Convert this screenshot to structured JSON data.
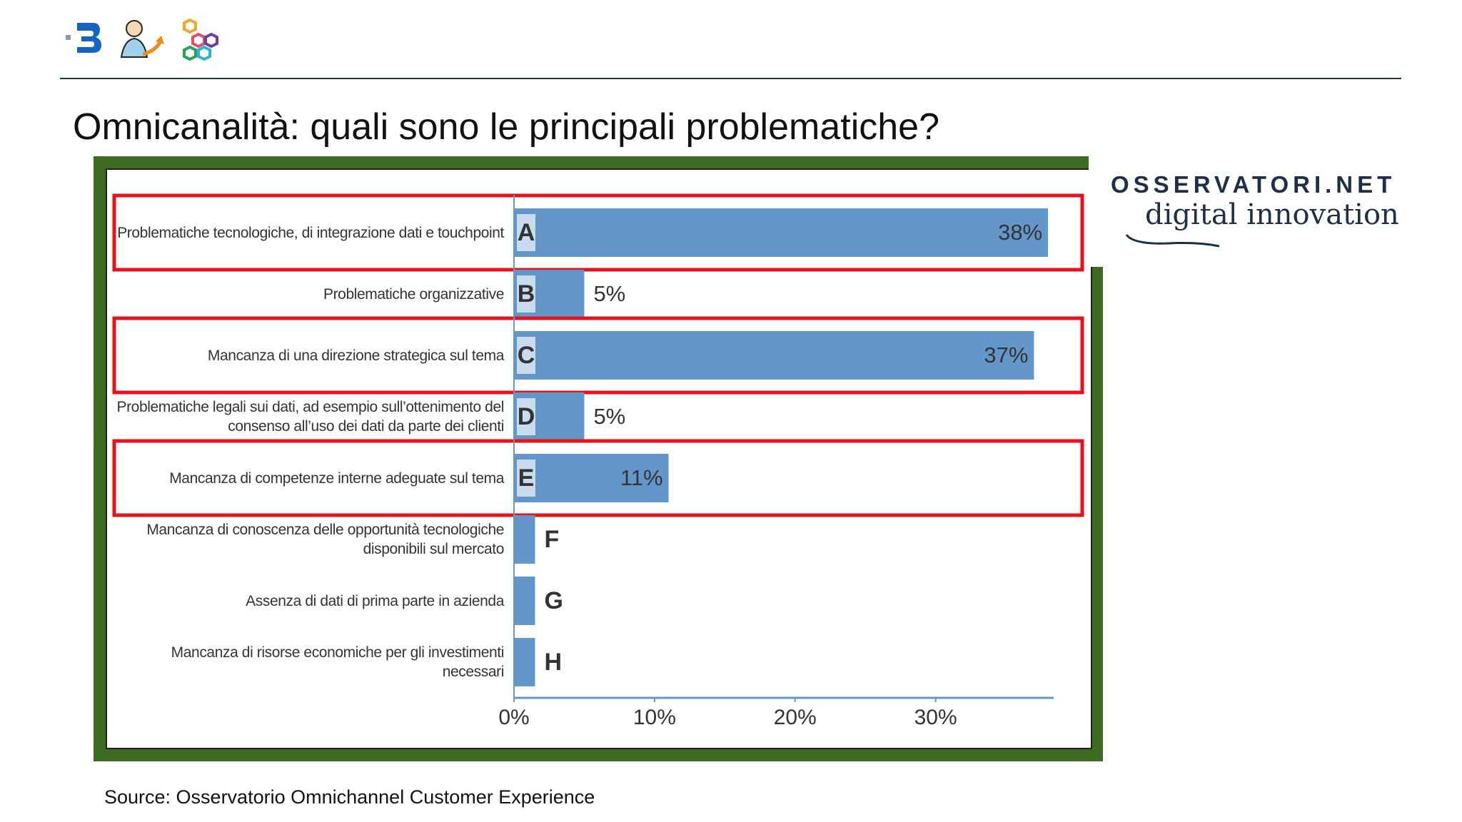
{
  "header": {
    "title": "Omnicanalità: quali sono le principali problematiche?"
  },
  "logo": {
    "name": "OSSERVATORI.NET",
    "tagline": "digital innovation"
  },
  "source": "Source: Osservatorio Omnichannel Customer Experience",
  "chart_data": {
    "type": "bar",
    "orientation": "horizontal",
    "categories": [
      "Problematiche tecnologiche, di integrazione dati e touchpoint",
      "Problematiche organizzative",
      "Mancanza di una direzione strategica sul tema",
      "Problematiche legali sui dati, ad esempio sull’ottenimento del consenso all’uso dei dati da parte dei clienti",
      "Mancanza di competenze interne adeguate sul tema",
      "Mancanza di conoscenza delle opportunità tecnologiche disponibili sul mercato",
      "Assenza di dati di prima parte in azienda",
      "Mancanza di risorse economiche per gli investimenti necessari"
    ],
    "letters": [
      "A",
      "B",
      "C",
      "D",
      "E",
      "F",
      "G",
      "H"
    ],
    "values": [
      38,
      5,
      37,
      5,
      11,
      1.5,
      1.5,
      1.5
    ],
    "value_labels": [
      "38%",
      "5%",
      "37%",
      "5%",
      "11%",
      null,
      null,
      null
    ],
    "color": "#6497c9",
    "highlighted": [
      "A",
      "C",
      "E"
    ],
    "highlight_color": "#e8101a",
    "xlim": [
      0,
      38.4
    ],
    "xticks": [
      {
        "value": 0,
        "label": "0%"
      },
      {
        "value": 10,
        "label": "10%"
      },
      {
        "value": 20,
        "label": "20%"
      },
      {
        "value": 30,
        "label": "30%"
      }
    ]
  }
}
